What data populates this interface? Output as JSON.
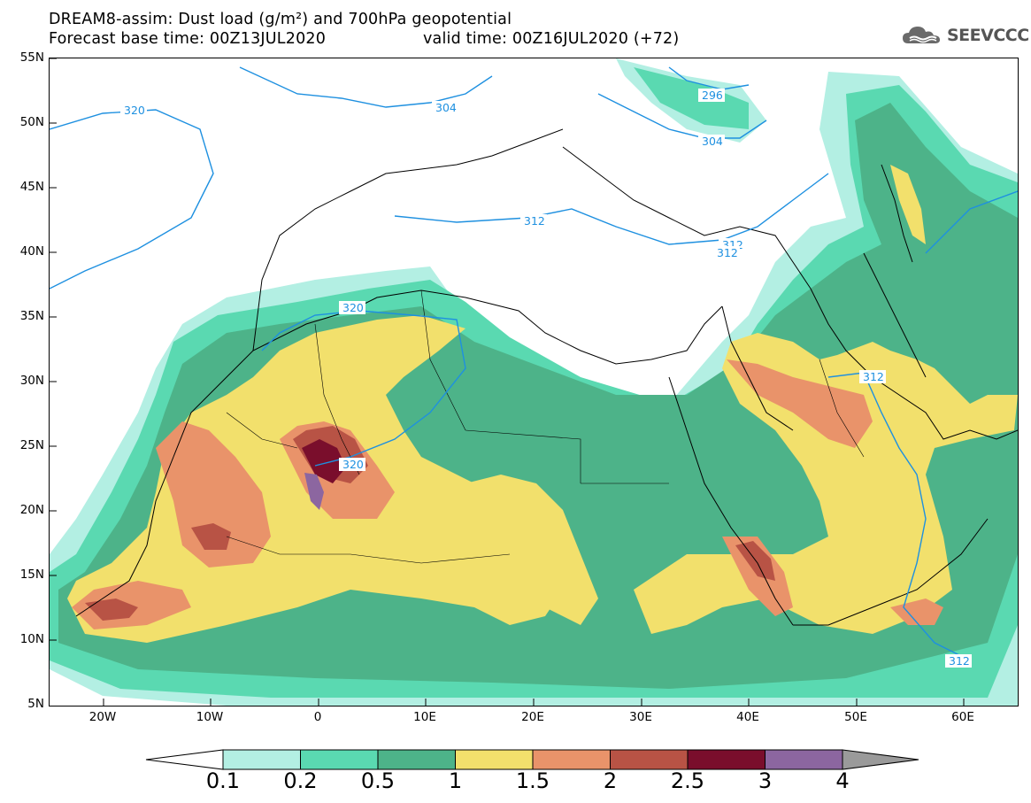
{
  "header": {
    "title_line1": "DREAM8-assim: Dust load (g/m²) and 700hPa geopotential",
    "title_line2_left": "Forecast base time: 00Z13JUL2020",
    "title_line2_right": "valid time: 00Z16JUL2020 (+72)",
    "logo_text": "SEEVCCC",
    "logo_icon": "cloud-logo-icon"
  },
  "axes": {
    "lat_labels": [
      "55N",
      "50N",
      "45N",
      "40N",
      "35N",
      "30N",
      "25N",
      "20N",
      "15N",
      "10N",
      "5N"
    ],
    "lon_labels": [
      "20W",
      "10W",
      "0",
      "10E",
      "20E",
      "30E",
      "40E",
      "50E",
      "60E"
    ],
    "lon_range": [
      -25,
      65
    ],
    "lat_range": [
      5,
      55
    ]
  },
  "contour_labels": [
    "320",
    "304",
    "296",
    "304",
    "312",
    "312",
    "312",
    "320",
    "312",
    "320",
    "312"
  ],
  "colorbar": {
    "levels": [
      "0.1",
      "0.2",
      "0.5",
      "1",
      "1.5",
      "2",
      "2.5",
      "3",
      "4"
    ],
    "colors": [
      "#b3efe3",
      "#5ad9b1",
      "#4db389",
      "#f2e06c",
      "#e9936a",
      "#b85345",
      "#7a0e2c",
      "#8c66a0",
      "#9a9a9a"
    ],
    "under_color": "#ffffff"
  },
  "map_colors": {
    "land_bg": "#ffffff",
    "coastline": "#000000",
    "contour_line": "#1e90e0"
  }
}
